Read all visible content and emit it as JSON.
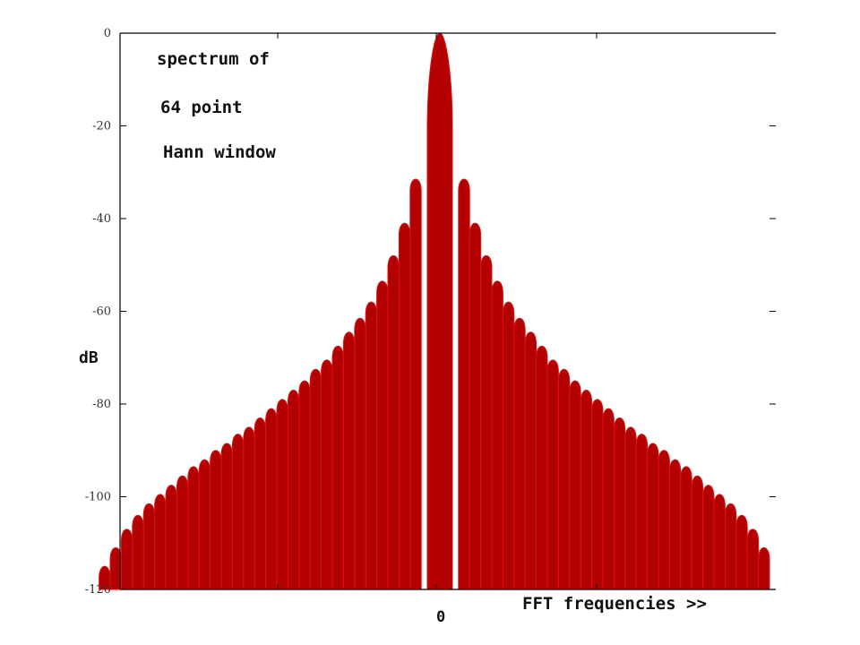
{
  "chart_data": {
    "type": "area",
    "annotation_lines": [
      "spectrum of",
      "64 point",
      "Hann window"
    ],
    "ylabel": "dB",
    "xlabel": "FFT frequencies >>",
    "x_tick_labels": [
      "0"
    ],
    "y_ticks": [
      0,
      -20,
      -40,
      -60,
      -80,
      -100,
      -120
    ],
    "ylim": [
      -120,
      0
    ],
    "grid": false,
    "fill_color": "#b30000",
    "edge_color": "#e01010",
    "main_lobe": {
      "x": 0,
      "peak_db": 0
    },
    "sidelobes_right_db": [
      -31.5,
      -41,
      -48,
      -53.5,
      -58,
      -61.5,
      -64.5,
      -67.5,
      -70.5,
      -72.5,
      -75,
      -77,
      -79,
      -81,
      -83,
      -85,
      -86.5,
      -88.5,
      -90,
      -92,
      -93.5,
      -95.5,
      -97.5,
      -99.5,
      -101.5,
      -104,
      -107,
      -111
    ],
    "sidelobes_left_db": [
      -31.5,
      -41,
      -48,
      -53.5,
      -58,
      -61.5,
      -64.5,
      -67.5,
      -70.5,
      -72.5,
      -75,
      -77,
      -79,
      -81,
      -83,
      -85,
      -86.5,
      -88.5,
      -90,
      -92,
      -93.5,
      -95.5,
      -97.5,
      -99.5,
      -101.5,
      -104,
      -107,
      -111,
      -115
    ]
  }
}
